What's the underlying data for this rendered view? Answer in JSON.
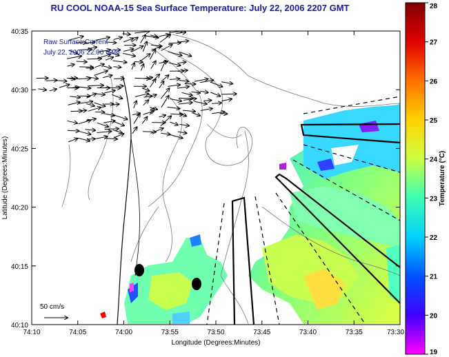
{
  "title": "RU COOL  NOAA-15  Sea Surface Temperature:  July 22, 2006 2207 GMT",
  "overlay": {
    "line1": "Raw Surface Current",
    "line2": "July 22, 2006 22:00 GMT"
  },
  "axes": {
    "xlabel": "Longitude (Degrees:Minutes)",
    "ylabel": "Latitude (Degrees:Minutes)",
    "xticks": [
      "74:10",
      "74:05",
      "74:00",
      "73:55",
      "73:50",
      "73:45",
      "73:40",
      "73:35",
      "73:30"
    ],
    "yticks": [
      "40:35",
      "40:30",
      "40:25",
      "40:20",
      "40:15",
      "40:10"
    ]
  },
  "colorbar": {
    "label": "Temperature (°C)",
    "ticks": [
      "28",
      "27",
      "26",
      "25",
      "24",
      "23",
      "22",
      "21",
      "20",
      "19"
    ],
    "colors": [
      "#ff00ff",
      "#0000ff",
      "#00ffff",
      "#ffff00",
      "#ff8000",
      "#c00000",
      "#800000"
    ]
  },
  "scale": {
    "label": "50 cm/s"
  },
  "colors": {
    "title": "#1a1aa0",
    "overlay_text": "#1a1aa0"
  }
}
